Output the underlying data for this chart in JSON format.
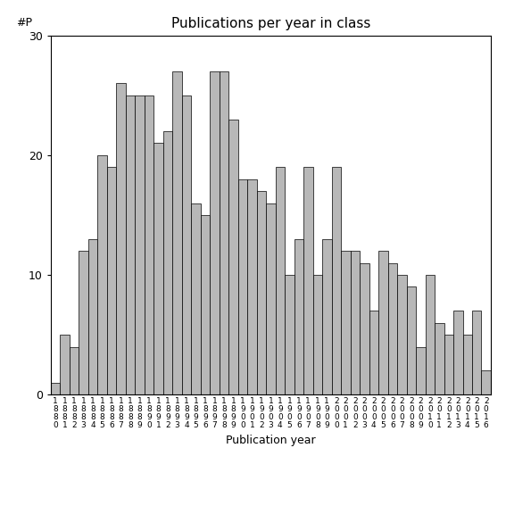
{
  "years": [
    "1880",
    "1881",
    "1882",
    "1883",
    "1884",
    "1885",
    "1886",
    "1887",
    "1888",
    "1889",
    "1890",
    "1891",
    "1892",
    "1893",
    "1894",
    "1895",
    "1896",
    "1897",
    "1898",
    "1899",
    "1900",
    "1901",
    "1902",
    "1903",
    "1904",
    "1905",
    "1906",
    "1907",
    "1908",
    "1909",
    "2000",
    "2001",
    "2002",
    "2003",
    "2004",
    "2005",
    "2006",
    "2007",
    "2008",
    "2009",
    "2010",
    "2011",
    "2012",
    "2013",
    "2014",
    "2015",
    "2016"
  ],
  "values": [
    1,
    5,
    4,
    12,
    13,
    20,
    19,
    26,
    25,
    25,
    25,
    21,
    22,
    27,
    25,
    16,
    15,
    27,
    27,
    23,
    18,
    18,
    17,
    16,
    19,
    10,
    13,
    19,
    10,
    13,
    19,
    12,
    12,
    11,
    7,
    12,
    11,
    10,
    9,
    4,
    10,
    6,
    5,
    7,
    5,
    7,
    2
  ],
  "title": "Publications per year in class",
  "ylabel": "#P",
  "xlabel": "Publication year",
  "ylim": [
    0,
    30
  ],
  "bar_color": "#b8b8b8",
  "bar_edgecolor": "#000000",
  "bg_color": "#ffffff"
}
